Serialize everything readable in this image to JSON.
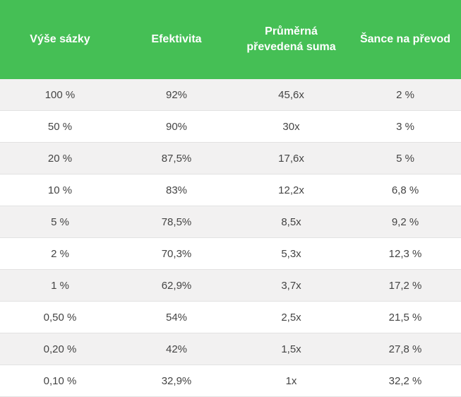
{
  "table": {
    "headers": [
      "Výše sázky",
      "Efektivita",
      "Průměrná převedená suma",
      "Šance na převod"
    ],
    "rows": [
      [
        "100 %",
        "92%",
        "45,6x",
        "2 %"
      ],
      [
        "50 %",
        "90%",
        "30x",
        "3 %"
      ],
      [
        "20 %",
        "87,5%",
        "17,6x",
        "5 %"
      ],
      [
        "10 %",
        "83%",
        "12,2x",
        "6,8 %"
      ],
      [
        "5 %",
        "78,5%",
        "8,5x",
        "9,2 %"
      ],
      [
        "2 %",
        "70,3%",
        "5,3x",
        "12,3 %"
      ],
      [
        "1 %",
        "62,9%",
        "3,7x",
        "17,2 %"
      ],
      [
        "0,50 %",
        "54%",
        "2,5x",
        "21,5 %"
      ],
      [
        "0,20 %",
        "42%",
        "1,5x",
        "27,8 %"
      ],
      [
        "0,10 %",
        "32,9%",
        "1x",
        "32,2 %"
      ]
    ]
  },
  "colors": {
    "header_bg": "#45bf55",
    "header_text": "#ffffff",
    "row_odd_bg": "#f2f1f1",
    "row_even_bg": "#ffffff",
    "cell_text": "#444444"
  }
}
